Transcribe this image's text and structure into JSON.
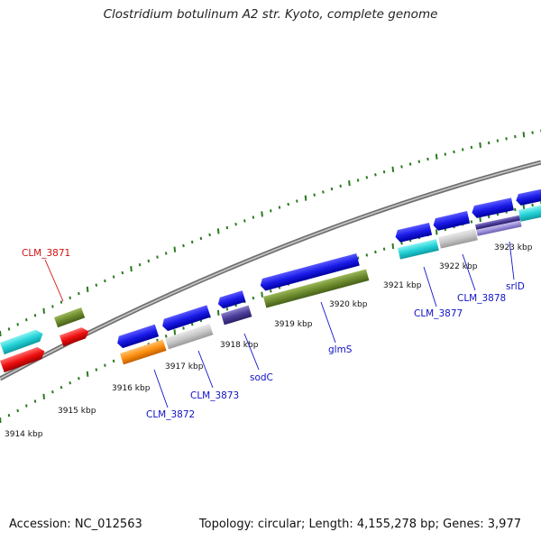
{
  "title": "Clostridium botulinum A2 str. Kyoto, complete genome",
  "footer": {
    "accession": "Accession: NC_012563",
    "summary": "Topology: circular; Length: 4,155,278 bp; Genes: 3,977"
  },
  "colors": {
    "backbone": "#808080",
    "ticks": "#2a7a1e",
    "label_blue": "#1010c8",
    "label_red": "#d01010"
  },
  "tick_labels": [
    "3914 kbp",
    "3915 kbp",
    "3916 kbp",
    "3917 kbp",
    "3918 kbp",
    "3919 kbp",
    "3920 kbp",
    "3921 kbp",
    "3922 kbp",
    "3923 kbp"
  ],
  "gene_labels": [
    "CLM_3871",
    "CLM_3872",
    "CLM_3873",
    "sodC",
    "glmS",
    "CLM_3877",
    "CLM_3878",
    "srlD"
  ]
}
